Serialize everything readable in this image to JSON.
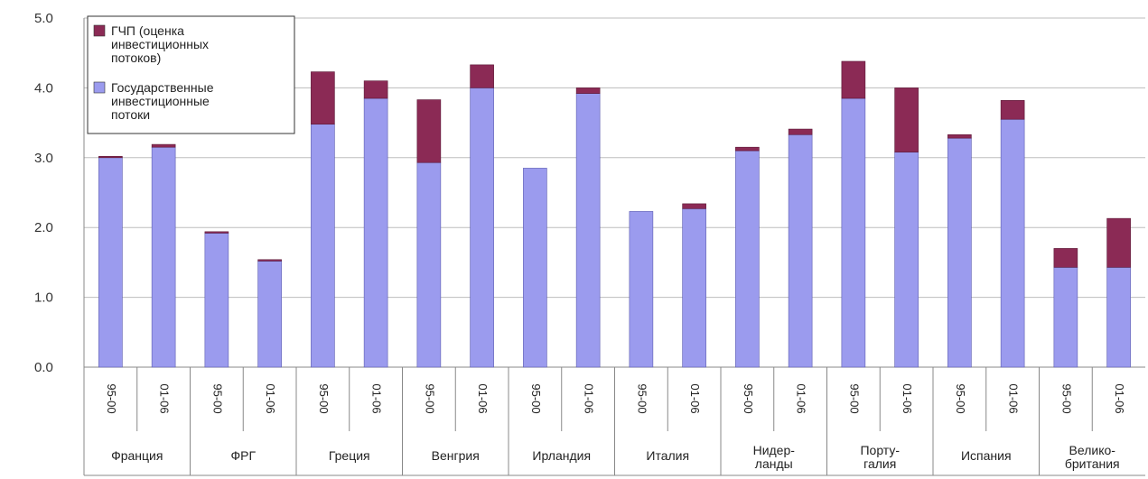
{
  "chart_data": {
    "type": "bar",
    "stacked": true,
    "y_ticks": [
      "0.0",
      "1.0",
      "2.0",
      "3.0",
      "4.0",
      "5.0"
    ],
    "ylim": [
      0,
      5
    ],
    "grid": true,
    "legend_position": "top-left",
    "periods": [
      "95-00",
      "01-06"
    ],
    "countries": [
      [
        "Франция"
      ],
      [
        "ФРГ"
      ],
      [
        "Греция"
      ],
      [
        "Венгрия"
      ],
      [
        "Ирландия"
      ],
      [
        "Италия"
      ],
      [
        "Нидер-",
        "ланды"
      ],
      [
        "Порту-",
        "галия"
      ],
      [
        "Испания"
      ],
      [
        "Велико-",
        "британия"
      ]
    ],
    "categories": [
      "95-00",
      "01-06",
      "95-00",
      "01-06",
      "95-00",
      "01-06",
      "95-00",
      "01-06",
      "95-00",
      "01-06",
      "95-00",
      "01-06",
      "95-00",
      "01-06",
      "95-00",
      "01-06",
      "95-00",
      "01-06",
      "95-00",
      "01-06"
    ],
    "series": [
      {
        "name": [
          "Государственные",
          "инвестиционные",
          "потоки"
        ],
        "color": "#9b9bee",
        "values": [
          3.0,
          3.15,
          1.92,
          1.52,
          3.48,
          3.85,
          2.93,
          4.0,
          2.85,
          3.92,
          2.23,
          2.27,
          3.1,
          3.33,
          3.85,
          3.08,
          3.28,
          3.55,
          1.43,
          1.43
        ]
      },
      {
        "name": [
          "ГЧП (оценка",
          "инвестиционных",
          "потоков)"
        ],
        "color": "#8b2a55",
        "values": [
          0.02,
          0.04,
          0.02,
          0.02,
          0.75,
          0.25,
          0.9,
          0.33,
          0.0,
          0.08,
          0.0,
          0.07,
          0.05,
          0.08,
          0.53,
          0.92,
          0.05,
          0.27,
          0.27,
          0.7
        ]
      }
    ]
  }
}
